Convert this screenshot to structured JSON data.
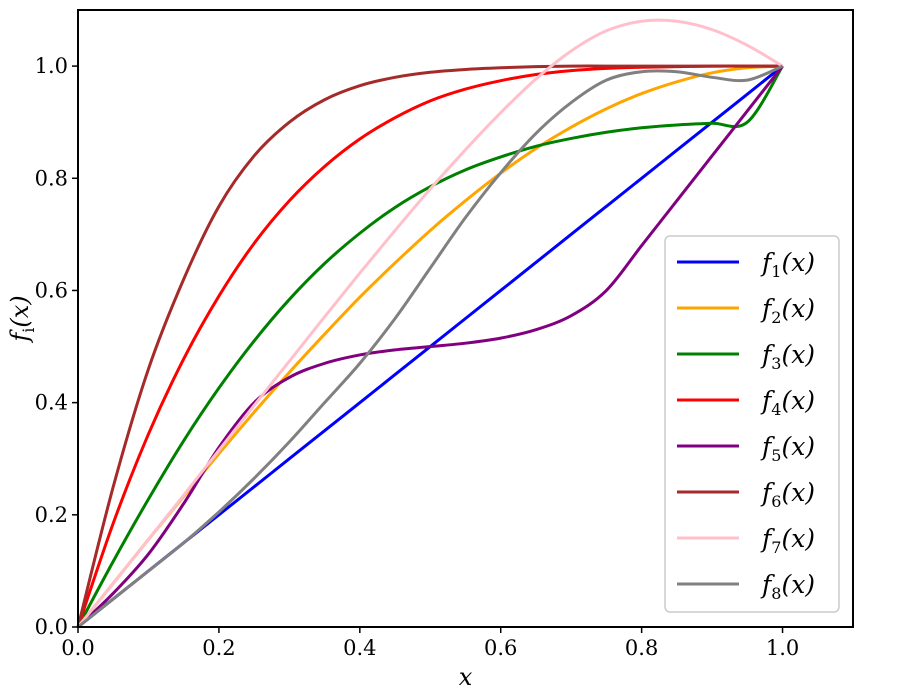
{
  "chart_data": {
    "type": "line",
    "title": "",
    "xlabel": "x",
    "ylabel": "f_i(x)",
    "ylabel_base": "f",
    "ylabel_sub": "i",
    "ylabel_arg": "(x)",
    "xlim": [
      0.0,
      1.1
    ],
    "ylim": [
      0.0,
      1.1
    ],
    "xticks": [
      "0.0",
      "0.2",
      "0.4",
      "0.6",
      "0.8",
      "1.0"
    ],
    "yticks": [
      "0.0",
      "0.2",
      "0.4",
      "0.6",
      "0.8",
      "1.0"
    ],
    "grid": false,
    "legend_position": "lower-right",
    "x": [
      0.0,
      0.05,
      0.1,
      0.15,
      0.2,
      0.25,
      0.3,
      0.35,
      0.4,
      0.45,
      0.5,
      0.55,
      0.6,
      0.65,
      0.7,
      0.75,
      0.8,
      0.85,
      0.9,
      0.95,
      1.0
    ],
    "series": [
      {
        "name": "f_1(x)",
        "sub": "1",
        "color": "#0000ff",
        "values": [
          0.0,
          0.05,
          0.1,
          0.15,
          0.2,
          0.25,
          0.3,
          0.35,
          0.4,
          0.45,
          0.5,
          0.55,
          0.6,
          0.65,
          0.7,
          0.75,
          0.8,
          0.85,
          0.9,
          0.95,
          1.0
        ]
      },
      {
        "name": "f_2(x)",
        "sub": "2",
        "color": "#ffa500",
        "values": [
          0.0,
          0.078,
          0.156,
          0.233,
          0.309,
          0.383,
          0.454,
          0.522,
          0.588,
          0.649,
          0.707,
          0.76,
          0.809,
          0.853,
          0.891,
          0.924,
          0.951,
          0.972,
          0.988,
          0.997,
          1.0
        ]
      },
      {
        "name": "f_3(x)",
        "sub": "3",
        "color": "#008000",
        "values": [
          0.0,
          0.117,
          0.228,
          0.332,
          0.426,
          0.51,
          0.584,
          0.648,
          0.702,
          0.748,
          0.785,
          0.815,
          0.838,
          0.857,
          0.871,
          0.882,
          0.89,
          0.895,
          0.898,
          0.9,
          1.0
        ]
      },
      {
        "name": "f_4(x)",
        "sub": "4",
        "color": "#ff0000",
        "values": [
          0.0,
          0.185,
          0.344,
          0.478,
          0.59,
          0.684,
          0.76,
          0.821,
          0.87,
          0.908,
          0.938,
          0.959,
          0.974,
          0.985,
          0.992,
          0.996,
          0.998,
          0.999,
          1.0,
          1.0,
          1.0
        ]
      },
      {
        "name": "f_5(x)",
        "sub": "5",
        "color": "#800080",
        "values": [
          0.0,
          0.06,
          0.13,
          0.22,
          0.32,
          0.4,
          0.445,
          0.47,
          0.485,
          0.494,
          0.5,
          0.506,
          0.515,
          0.53,
          0.555,
          0.6,
          0.68,
          0.76,
          0.84,
          0.92,
          1.0
        ]
      },
      {
        "name": "f_6(x)",
        "sub": "6",
        "color": "#a52a2a",
        "values": [
          0.0,
          0.25,
          0.46,
          0.62,
          0.75,
          0.84,
          0.9,
          0.94,
          0.965,
          0.98,
          0.989,
          0.994,
          0.997,
          0.999,
          1.0,
          1.0,
          1.0,
          1.0,
          1.0,
          1.0,
          1.0
        ]
      },
      {
        "name": "f_7(x)",
        "sub": "7",
        "color": "#ffc0cb",
        "values": [
          0.0,
          0.078,
          0.156,
          0.235,
          0.315,
          0.395,
          0.474,
          0.553,
          0.631,
          0.707,
          0.781,
          0.851,
          0.917,
          0.977,
          1.027,
          1.063,
          1.08,
          1.08,
          1.065,
          1.037,
          1.0
        ]
      },
      {
        "name": "f_8(x)",
        "sub": "8",
        "color": "#808080",
        "values": [
          0.0,
          0.05,
          0.1,
          0.15,
          0.205,
          0.265,
          0.33,
          0.4,
          0.47,
          0.55,
          0.64,
          0.73,
          0.81,
          0.88,
          0.935,
          0.975,
          0.99,
          0.99,
          0.98,
          0.975,
          1.0
        ]
      }
    ]
  }
}
